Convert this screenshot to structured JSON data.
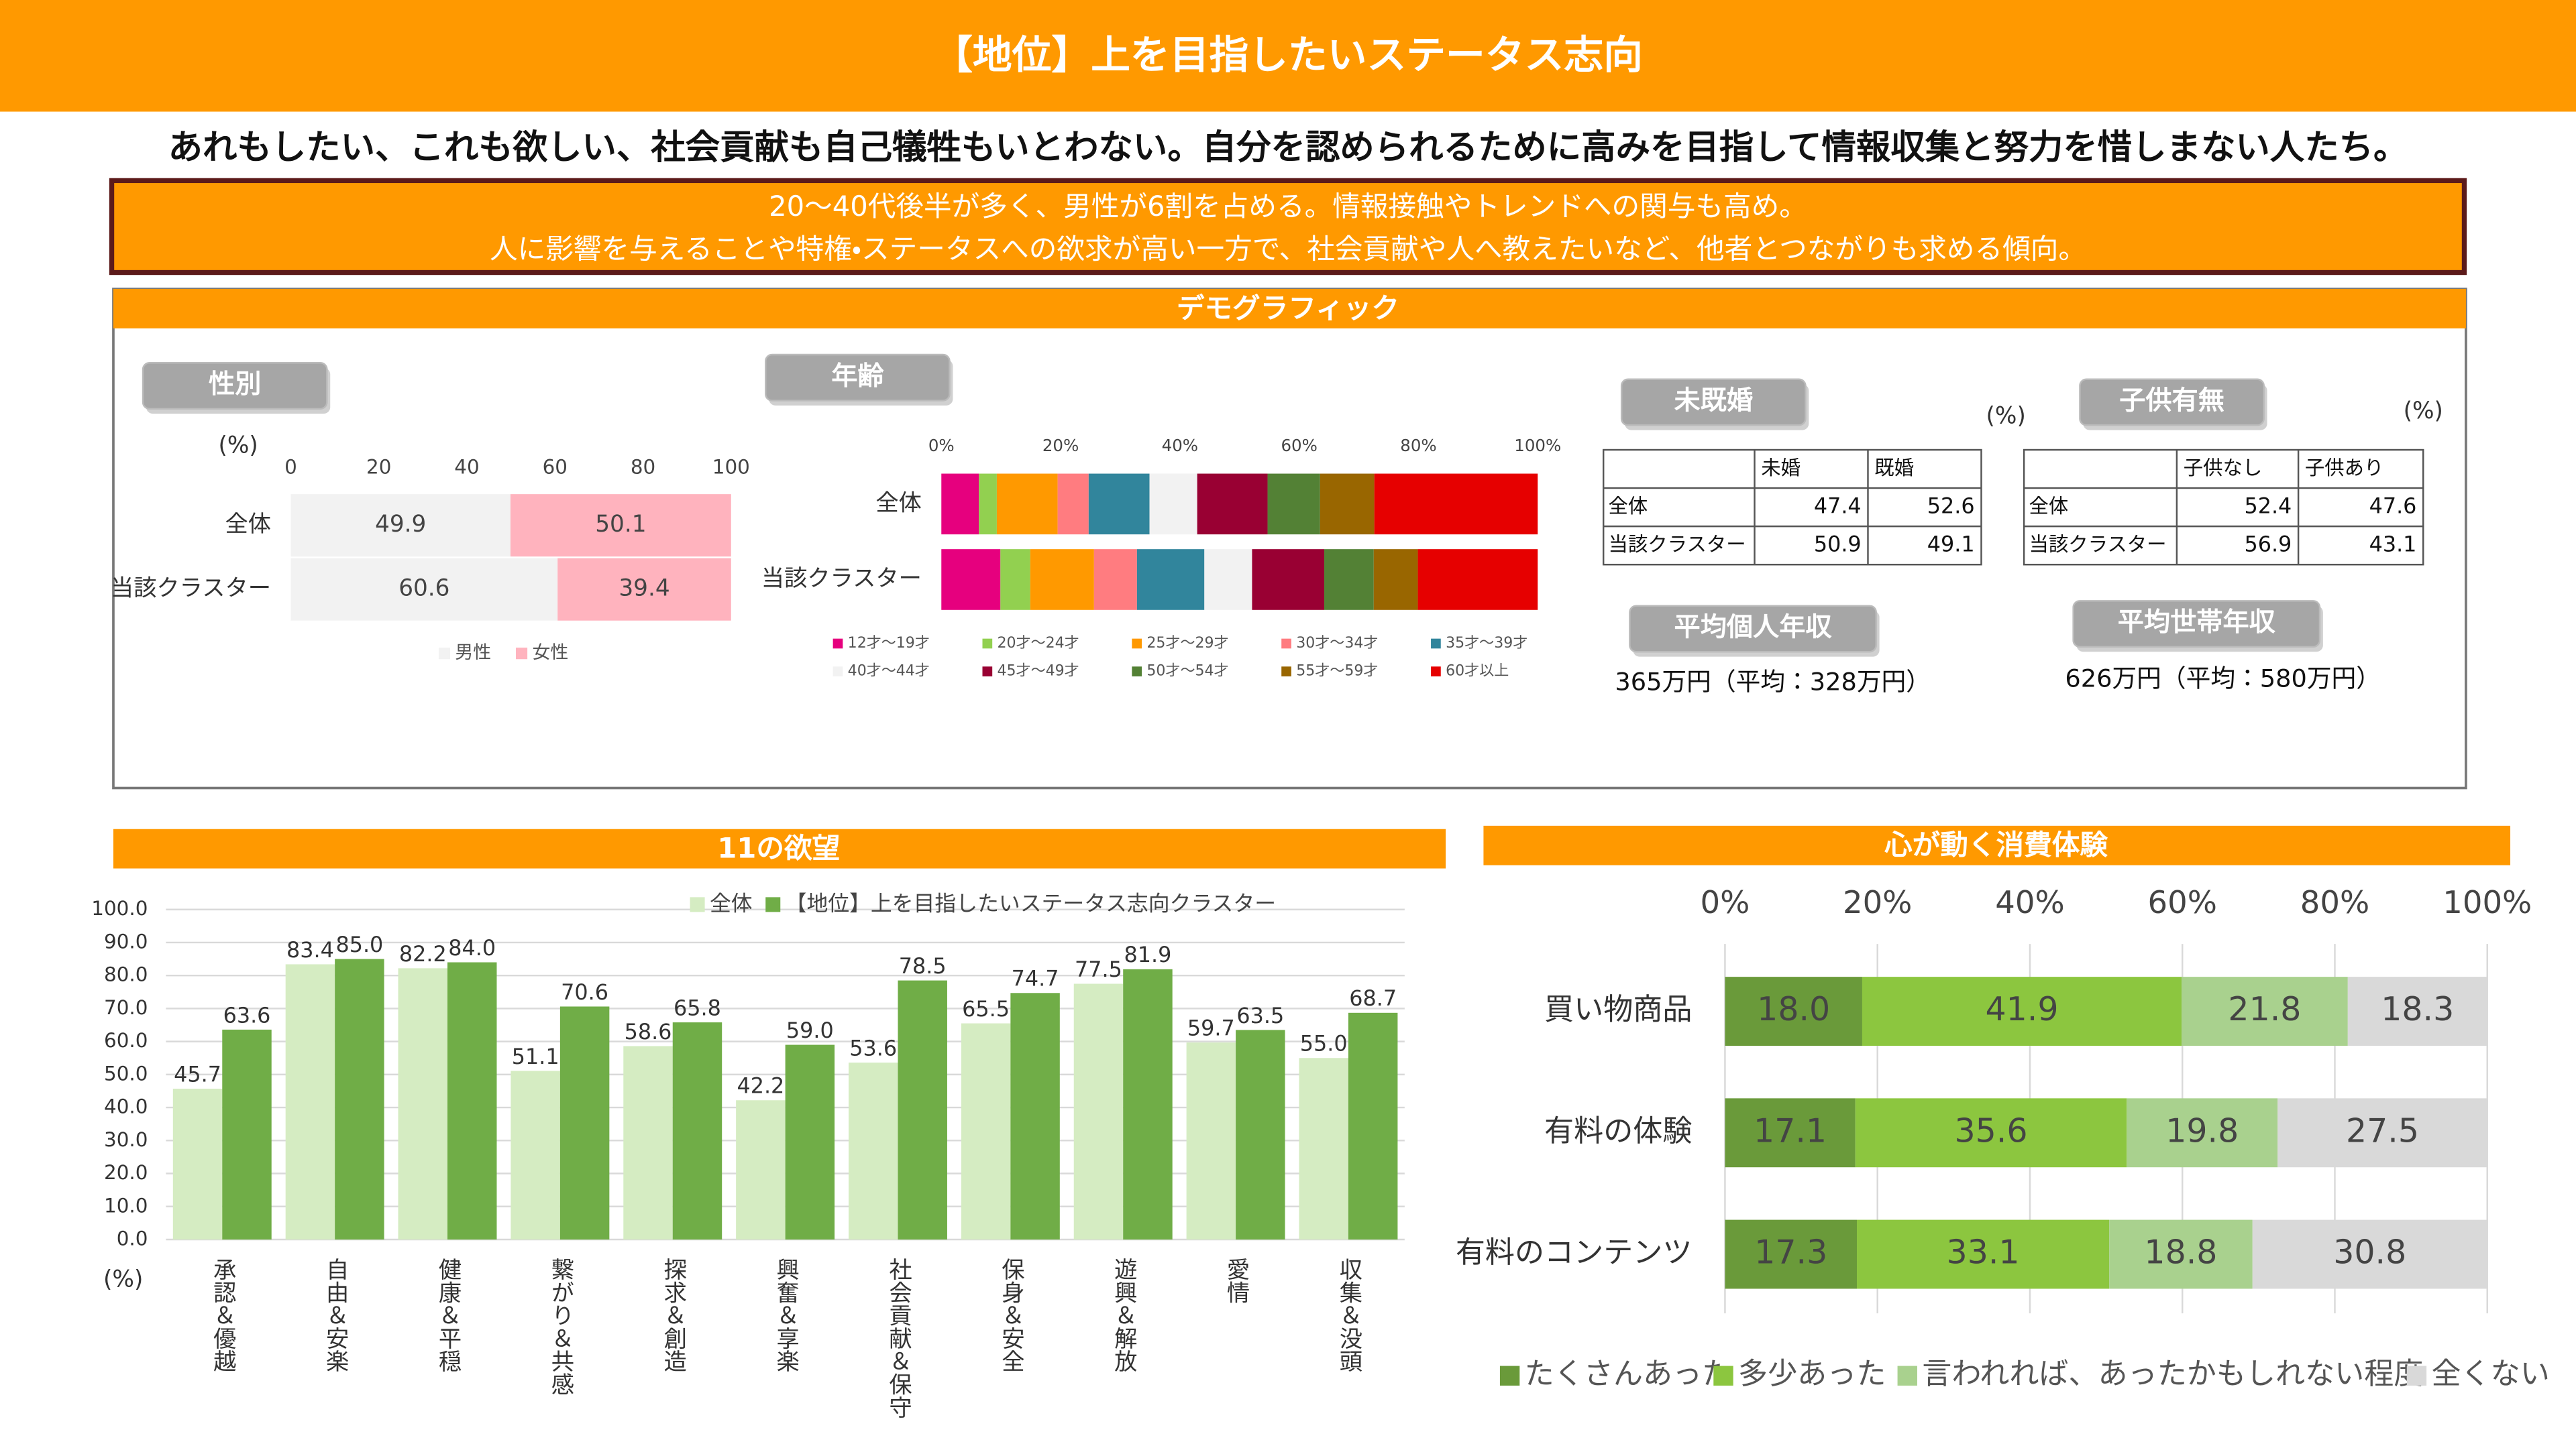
{
  "header": {
    "title": "【地位】上を目指したいステータス志向",
    "tagline": "あれもしたい、これも欲しい、社会貢献も自己犠牲もいとわない。自分を認められるために高みを目指して情報収集と努力を惜しまない人たち。",
    "summary": [
      "20～40代後半が多く、男性が6割を占める。情報接触やトレンドへの関与も高め。",
      "人に影響を与えることや特権・ステータスへの欲求が高い一方で、社会貢献や人へ教えたいなど、他者とつながりも求める傾向。"
    ]
  },
  "demographics": {
    "title": "デモグラフィック",
    "gender_label": "性別",
    "age_label": "年齢",
    "marital": {
      "label": "未既婚",
      "unit_label": "(%)",
      "table": {
        "header": [
          "未婚",
          "既婚"
        ],
        "rows": [
          [
            "全体",
            47.4,
            52.6
          ],
          [
            "当該クラスター",
            50.9,
            49.1
          ]
        ]
      }
    },
    "children": {
      "label": "子供有無",
      "unit_label": "(%)",
      "table": {
        "header": [
          "子供なし",
          "子供あり"
        ],
        "rows": [
          [
            "全体",
            52.4,
            47.6
          ],
          [
            "当該クラスター",
            56.9,
            43.1
          ]
        ]
      }
    },
    "personal_income": {
      "label": "平均個人年収",
      "text": "365万円（平均：328万円）"
    },
    "household_income": {
      "label": "平均世帯年収",
      "text": "626万円（平均：580万円）"
    }
  },
  "desires_title": "11の欲望",
  "consumption_title": "心が動く消費体験",
  "chart_data": [
    {
      "type": "barh",
      "stacked": true,
      "unit_label": "(%)",
      "categories": [
        "全体",
        "当該クラスター"
      ],
      "series": [
        {
          "name": "男性",
          "color": "#f2f2f2",
          "values": [
            49.9,
            60.6
          ]
        },
        {
          "name": "女性",
          "color": "#ffb3be",
          "values": [
            50.1,
            39.4
          ]
        }
      ],
      "xlim": [
        0,
        100
      ],
      "xticks": [
        0,
        20,
        40,
        60,
        80,
        100
      ],
      "grid": false
    },
    {
      "type": "barh",
      "stacked": true,
      "categories": [
        "全体",
        "当該クラスター"
      ],
      "series": [
        {
          "name": "12才～19才",
          "color": "#e6007e",
          "values": [
            6.3,
            9.9
          ]
        },
        {
          "name": "20才～24才",
          "color": "#92d050",
          "values": [
            3.0,
            5.0
          ]
        },
        {
          "name": "25才～29才",
          "color": "#ff9900",
          "values": [
            10.2,
            10.7
          ]
        },
        {
          "name": "30才～34才",
          "color": "#ff7c80",
          "values": [
            5.2,
            7.2
          ]
        },
        {
          "name": "35才～39才",
          "color": "#31859c",
          "values": [
            10.2,
            11.3
          ]
        },
        {
          "name": "40才～44才",
          "color": "#f2f2f2",
          "values": [
            8.0,
            8.0
          ]
        },
        {
          "name": "45才～49才",
          "color": "#990033",
          "values": [
            11.8,
            12.1
          ]
        },
        {
          "name": "50才～54才",
          "color": "#538135",
          "values": [
            8.8,
            8.3
          ]
        },
        {
          "name": "55才～59才",
          "color": "#996600",
          "values": [
            9.1,
            7.4
          ]
        },
        {
          "name": "60才以上",
          "color": "#e60000",
          "values": [
            27.4,
            20.1
          ]
        }
      ],
      "xlim": [
        0,
        100
      ],
      "xticks": [
        {
          "value": 0,
          "label": "0%"
        },
        {
          "value": 20,
          "label": "20%"
        },
        {
          "value": 40,
          "label": "40%"
        },
        {
          "value": 60,
          "label": "60%"
        },
        {
          "value": 80,
          "label": "80%"
        },
        {
          "value": 100,
          "label": "100%"
        }
      ],
      "grid": false
    },
    {
      "type": "bar",
      "unit_label": "(%)",
      "categories": [
        "承認＆優越",
        "自由＆安楽",
        "健康＆平穏",
        "繋がり＆共感",
        "探求＆創造",
        "興奮＆享楽",
        "社会貢献＆保守",
        "保身＆安全",
        "遊興＆解放",
        "愛情",
        "収集＆没頭"
      ],
      "series": [
        {
          "name": "全体",
          "color": "#d5ecc2",
          "values": [
            45.7,
            83.4,
            82.2,
            51.1,
            58.6,
            42.2,
            53.6,
            65.5,
            77.5,
            59.7,
            55.0
          ],
          "value_labels": [
            "45.7",
            "83.4",
            "82.2",
            "51.1",
            "58.6",
            "42.2",
            "53.6",
            "65.5",
            "77.5",
            "59.7",
            "55.0"
          ]
        },
        {
          "name": "【地位】上を目指したいステータス志向クラスター",
          "color": "#70ad47",
          "values": [
            63.6,
            85.0,
            84.0,
            70.6,
            65.8,
            59.0,
            78.5,
            74.7,
            81.9,
            63.5,
            68.7
          ],
          "value_labels": [
            "63.6",
            "85.0",
            "84.0",
            "70.6",
            "65.8",
            "59.0",
            "78.5",
            "74.7",
            "81.9",
            "63.5",
            "68.7"
          ]
        }
      ],
      "ylim": [
        0,
        100
      ],
      "yticks": [
        {
          "value": 0,
          "label": "0.0"
        },
        {
          "value": 10,
          "label": "10.0"
        },
        {
          "value": 20,
          "label": "20.0"
        },
        {
          "value": 30,
          "label": "30.0"
        },
        {
          "value": 40,
          "label": "40.0"
        },
        {
          "value": 50,
          "label": "50.0"
        },
        {
          "value": 60,
          "label": "60.0"
        },
        {
          "value": 70,
          "label": "70.0"
        },
        {
          "value": 80,
          "label": "80.0"
        },
        {
          "value": 90,
          "label": "90.0"
        },
        {
          "value": 100,
          "label": "100.0"
        }
      ],
      "grid": true,
      "legend": "top"
    },
    {
      "type": "barh",
      "stacked": true,
      "categories": [
        "買い物商品",
        "有料の体験",
        "有料のコンテンツ"
      ],
      "series": [
        {
          "name": "たくさんあった",
          "color": "#6a9a3a",
          "values": [
            18.0,
            17.1,
            17.3
          ],
          "value_labels": [
            "18.0",
            "17.1",
            "17.3"
          ]
        },
        {
          "name": "多少あった",
          "color": "#8cc63f",
          "values": [
            41.9,
            35.6,
            33.1
          ],
          "value_labels": [
            "41.9",
            "35.6",
            "33.1"
          ]
        },
        {
          "name": "言われれば、あったかもしれない程度",
          "color": "#a9d18e",
          "values": [
            21.8,
            19.8,
            18.8
          ],
          "value_labels": [
            "21.8",
            "19.8",
            "18.8"
          ]
        },
        {
          "name": "全くない",
          "color": "#d9d9d9",
          "values": [
            18.3,
            27.5,
            30.8
          ],
          "value_labels": [
            "18.3",
            "27.5",
            "30.8"
          ]
        }
      ],
      "xlim": [
        0,
        100
      ],
      "xticks": [
        {
          "value": 0,
          "label": "0%"
        },
        {
          "value": 20,
          "label": "20%"
        },
        {
          "value": 40,
          "label": "40%"
        },
        {
          "value": 60,
          "label": "60%"
        },
        {
          "value": 80,
          "label": "80%"
        },
        {
          "value": 100,
          "label": "100%"
        }
      ],
      "grid": true,
      "legend": "bottom"
    }
  ]
}
